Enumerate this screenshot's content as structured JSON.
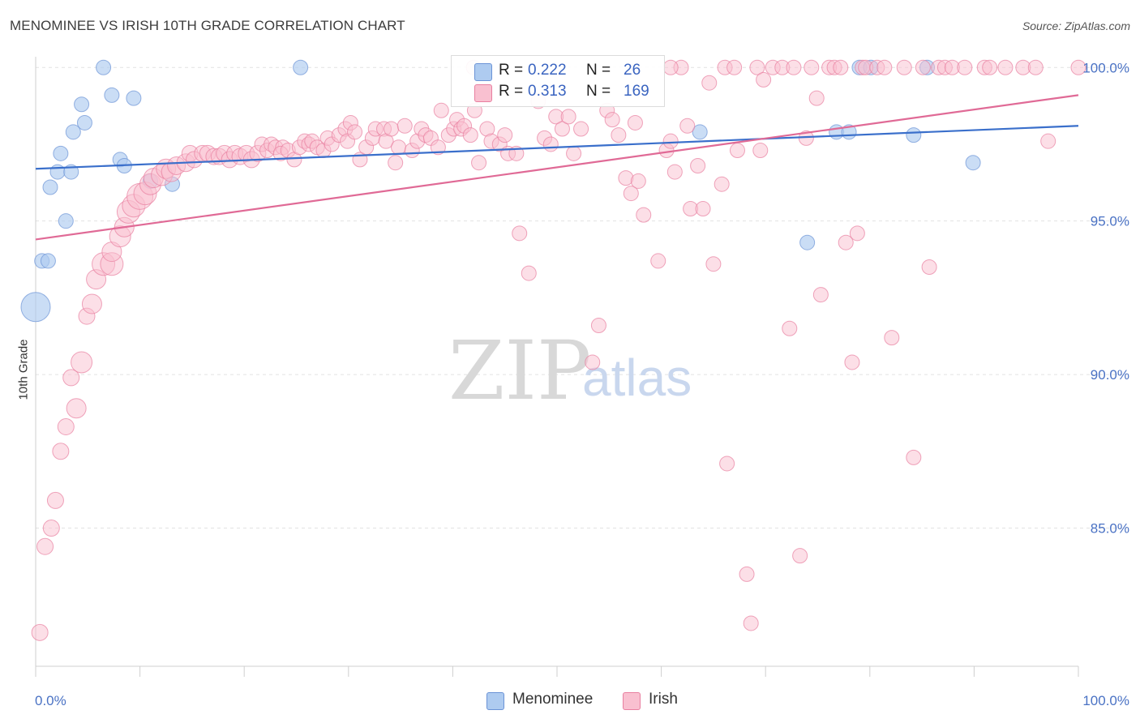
{
  "header": {
    "title": "MENOMINEE VS IRISH 10TH GRADE CORRELATION CHART",
    "source": "Source: ZipAtlas.com"
  },
  "watermark": {
    "zip": "ZIP",
    "atlas": "atlas"
  },
  "legend": {
    "rows": [
      {
        "r_label": "R =",
        "r_value": "0.222",
        "n_label": "N =",
        "n_value": "26",
        "color": "#aecbf0",
        "stroke": "#6b93d6"
      },
      {
        "r_label": "R =",
        "r_value": "0.313",
        "n_label": "N =",
        "n_value": "169",
        "color": "#f9c0d0",
        "stroke": "#e87fa0"
      }
    ]
  },
  "bottom_legend": {
    "items": [
      {
        "label": "Menominee",
        "color": "#aecbf0",
        "stroke": "#6b93d6"
      },
      {
        "label": "Irish",
        "color": "#f9c0d0",
        "stroke": "#e87fa0"
      }
    ]
  },
  "chart_data": {
    "type": "scatter",
    "title": "MENOMINEE VS IRISH 10TH GRADE CORRELATION CHART",
    "xlabel": "",
    "ylabel": "10th Grade",
    "xlim": [
      0,
      100
    ],
    "ylim": [
      80.5,
      100.35
    ],
    "x_tick_labels": [
      "0.0%",
      "100.0%"
    ],
    "y_ticks": [
      85,
      90,
      95,
      100
    ],
    "y_tick_labels": [
      "85.0%",
      "90.0%",
      "95.0%",
      "100.0%"
    ],
    "grid": true,
    "legend_placement": "top-center",
    "series": [
      {
        "name": "Menominee",
        "color": "#aecbf0",
        "stroke": "#6b93d6",
        "trend": {
          "x": [
            0,
            100
          ],
          "y": [
            96.7,
            98.1
          ]
        },
        "points": [
          [
            0,
            92.2,
            18
          ],
          [
            0.6,
            93.7,
            9
          ],
          [
            1.2,
            93.7,
            9
          ],
          [
            1.4,
            96.1,
            9
          ],
          [
            2.1,
            96.6,
            9
          ],
          [
            2.4,
            97.2,
            9
          ],
          [
            2.9,
            95.0,
            9
          ],
          [
            3.4,
            96.6,
            9
          ],
          [
            3.6,
            97.9,
            9
          ],
          [
            4.4,
            98.8,
            9
          ],
          [
            4.7,
            98.2,
            9
          ],
          [
            6.5,
            100.0,
            9
          ],
          [
            7.3,
            99.1,
            9
          ],
          [
            8.1,
            97.0,
            9
          ],
          [
            8.5,
            96.8,
            9
          ],
          [
            9.4,
            99.0,
            9
          ],
          [
            11.0,
            96.3,
            9
          ],
          [
            13.1,
            96.2,
            9
          ],
          [
            25.4,
            100.0,
            9
          ],
          [
            63.7,
            97.9,
            9
          ],
          [
            74.0,
            94.3,
            9
          ],
          [
            76.8,
            97.9,
            9
          ],
          [
            78.0,
            97.9,
            9
          ],
          [
            79.0,
            100.0,
            9
          ],
          [
            80.1,
            100.0,
            9
          ],
          [
            84.2,
            97.8,
            9
          ],
          [
            85.5,
            100.0,
            9
          ],
          [
            89.9,
            96.9,
            9
          ]
        ]
      },
      {
        "name": "Irish",
        "color": "#f9c0d0",
        "stroke": "#e87fa0",
        "trend": {
          "x": [
            0,
            100
          ],
          "y": [
            94.4,
            99.1
          ]
        },
        "points": [
          [
            0.4,
            81.6,
            10
          ],
          [
            0.9,
            84.4,
            10
          ],
          [
            1.5,
            85.0,
            10
          ],
          [
            1.9,
            85.9,
            10
          ],
          [
            2.4,
            87.5,
            10
          ],
          [
            2.9,
            88.3,
            10
          ],
          [
            3.4,
            89.9,
            10
          ],
          [
            3.9,
            88.9,
            12
          ],
          [
            4.4,
            90.4,
            13
          ],
          [
            4.9,
            91.9,
            10
          ],
          [
            5.4,
            92.3,
            12
          ],
          [
            5.8,
            93.1,
            12
          ],
          [
            6.5,
            93.6,
            14
          ],
          [
            7.3,
            93.6,
            14
          ],
          [
            7.3,
            94.0,
            12
          ],
          [
            8.1,
            94.5,
            13
          ],
          [
            8.5,
            94.8,
            12
          ],
          [
            8.9,
            95.3,
            14
          ],
          [
            9.4,
            95.5,
            14
          ],
          [
            10.0,
            95.8,
            16
          ],
          [
            10.5,
            95.9,
            14
          ],
          [
            11.0,
            96.2,
            13
          ],
          [
            11.3,
            96.4,
            12
          ],
          [
            12.1,
            96.5,
            13
          ],
          [
            12.5,
            96.7,
            12
          ],
          [
            13.0,
            96.6,
            12
          ],
          [
            13.5,
            96.8,
            11
          ],
          [
            14.4,
            96.9,
            11
          ],
          [
            14.8,
            97.2,
            10
          ],
          [
            15.2,
            97.0,
            10
          ],
          [
            16.0,
            97.2,
            10
          ],
          [
            16.5,
            97.2,
            10
          ],
          [
            17.1,
            97.1,
            10
          ],
          [
            17.6,
            97.1,
            10
          ],
          [
            18.1,
            97.2,
            10
          ],
          [
            18.6,
            97.0,
            10
          ],
          [
            19.1,
            97.2,
            10
          ],
          [
            19.6,
            97.1,
            10
          ],
          [
            20.2,
            97.2,
            10
          ],
          [
            20.7,
            97.0,
            10
          ],
          [
            21.3,
            97.2,
            10
          ],
          [
            21.7,
            97.5,
            9
          ],
          [
            22.2,
            97.3,
            9
          ],
          [
            22.6,
            97.5,
            9
          ],
          [
            23.0,
            97.4,
            9
          ],
          [
            23.7,
            97.4,
            9
          ],
          [
            23.5,
            97.2,
            9
          ],
          [
            24.2,
            97.3,
            9
          ],
          [
            24.8,
            97.0,
            9
          ],
          [
            25.3,
            97.4,
            9
          ],
          [
            25.8,
            97.6,
            9
          ],
          [
            26.2,
            97.5,
            9
          ],
          [
            26.5,
            97.6,
            9
          ],
          [
            27.0,
            97.4,
            9
          ],
          [
            27.6,
            97.3,
            9
          ],
          [
            28.0,
            97.7,
            9
          ],
          [
            28.4,
            97.5,
            9
          ],
          [
            29.1,
            97.8,
            9
          ],
          [
            29.7,
            98.0,
            9
          ],
          [
            29.9,
            97.6,
            9
          ],
          [
            30.2,
            98.2,
            9
          ],
          [
            30.6,
            97.9,
            9
          ],
          [
            31.1,
            97.0,
            9
          ],
          [
            31.7,
            97.4,
            9
          ],
          [
            32.3,
            97.7,
            9
          ],
          [
            32.6,
            98.0,
            9
          ],
          [
            33.4,
            98.0,
            9
          ],
          [
            33.6,
            97.6,
            9
          ],
          [
            34.1,
            98.0,
            9
          ],
          [
            34.5,
            96.9,
            9
          ],
          [
            34.8,
            97.4,
            9
          ],
          [
            35.4,
            98.1,
            9
          ],
          [
            36.1,
            97.3,
            9
          ],
          [
            36.6,
            97.6,
            9
          ],
          [
            37.0,
            98.0,
            9
          ],
          [
            37.4,
            97.8,
            9
          ],
          [
            37.9,
            97.7,
            9
          ],
          [
            38.6,
            97.4,
            9
          ],
          [
            38.9,
            98.6,
            9
          ],
          [
            39.6,
            97.8,
            9
          ],
          [
            40.1,
            98.0,
            9
          ],
          [
            40.4,
            98.3,
            9
          ],
          [
            40.8,
            98.0,
            9
          ],
          [
            41.1,
            98.1,
            9
          ],
          [
            41.7,
            97.8,
            9
          ],
          [
            42.1,
            98.6,
            9
          ],
          [
            42.5,
            96.9,
            9
          ],
          [
            43.3,
            98.0,
            9
          ],
          [
            43.7,
            97.6,
            9
          ],
          [
            44.5,
            97.5,
            9
          ],
          [
            45.0,
            97.8,
            9
          ],
          [
            45.3,
            97.2,
            9
          ],
          [
            46.1,
            97.2,
            9
          ],
          [
            46.4,
            94.6,
            9
          ],
          [
            47.3,
            93.3,
            9
          ],
          [
            48.2,
            98.9,
            9
          ],
          [
            48.8,
            97.7,
            9
          ],
          [
            49.4,
            97.5,
            9
          ],
          [
            49.9,
            98.4,
            9
          ],
          [
            50.5,
            98.0,
            9
          ],
          [
            51.1,
            98.4,
            9
          ],
          [
            51.6,
            97.2,
            9
          ],
          [
            52.3,
            98.0,
            9
          ],
          [
            53.4,
            90.4,
            9
          ],
          [
            54.0,
            91.6,
            9
          ],
          [
            54.8,
            98.6,
            9
          ],
          [
            55.3,
            98.3,
            9
          ],
          [
            55.9,
            97.8,
            9
          ],
          [
            56.6,
            96.4,
            9
          ],
          [
            57.1,
            95.9,
            9
          ],
          [
            57.5,
            98.2,
            9
          ],
          [
            57.8,
            96.3,
            9
          ],
          [
            58.3,
            95.2,
            9
          ],
          [
            59.7,
            93.7,
            9
          ],
          [
            60.5,
            97.3,
            9
          ],
          [
            60.9,
            97.6,
            9
          ],
          [
            61.3,
            96.6,
            9
          ],
          [
            61.9,
            100.0,
            9
          ],
          [
            62.5,
            98.1,
            9
          ],
          [
            62.8,
            95.4,
            9
          ],
          [
            63.5,
            96.8,
            9
          ],
          [
            64.0,
            95.4,
            9
          ],
          [
            64.6,
            99.5,
            9
          ],
          [
            65.0,
            93.6,
            9
          ],
          [
            65.8,
            96.2,
            9
          ],
          [
            66.1,
            100.0,
            9
          ],
          [
            66.3,
            87.1,
            9
          ],
          [
            67.0,
            100.0,
            9
          ],
          [
            67.3,
            97.3,
            9
          ],
          [
            68.2,
            83.5,
            9
          ],
          [
            68.6,
            81.9,
            9
          ],
          [
            69.2,
            100.0,
            9
          ],
          [
            69.5,
            97.3,
            9
          ],
          [
            69.8,
            99.6,
            9
          ],
          [
            70.7,
            100.0,
            9
          ],
          [
            71.6,
            100.0,
            9
          ],
          [
            72.3,
            91.5,
            9
          ],
          [
            72.7,
            100.0,
            9
          ],
          [
            73.3,
            84.1,
            9
          ],
          [
            73.9,
            97.7,
            9
          ],
          [
            74.4,
            100.0,
            9
          ],
          [
            74.9,
            99.0,
            9
          ],
          [
            75.3,
            92.6,
            9
          ],
          [
            76.1,
            100.0,
            9
          ],
          [
            76.6,
            100.0,
            9
          ],
          [
            77.2,
            100.0,
            9
          ],
          [
            77.7,
            94.3,
            9
          ],
          [
            78.3,
            90.4,
            9
          ],
          [
            78.8,
            94.6,
            9
          ],
          [
            79.3,
            100.0,
            9
          ],
          [
            79.6,
            100.0,
            9
          ],
          [
            80.7,
            100.0,
            9
          ],
          [
            81.4,
            100.0,
            9
          ],
          [
            82.1,
            91.2,
            9
          ],
          [
            83.3,
            100.0,
            9
          ],
          [
            84.2,
            87.3,
            9
          ],
          [
            85.1,
            100.0,
            9
          ],
          [
            85.7,
            93.5,
            9
          ],
          [
            86.6,
            100.0,
            9
          ],
          [
            87.2,
            100.0,
            9
          ],
          [
            87.9,
            100.0,
            9
          ],
          [
            89.1,
            100.0,
            9
          ],
          [
            91.0,
            100.0,
            9
          ],
          [
            91.5,
            100.0,
            9
          ],
          [
            93.0,
            100.0,
            9
          ],
          [
            94.7,
            100.0,
            9
          ],
          [
            95.9,
            100.0,
            9
          ],
          [
            100.0,
            100.0,
            9
          ],
          [
            97.1,
            97.6,
            9
          ],
          [
            60.9,
            100.0,
            9
          ],
          [
            42.0,
            100.0,
            9
          ]
        ]
      }
    ]
  }
}
